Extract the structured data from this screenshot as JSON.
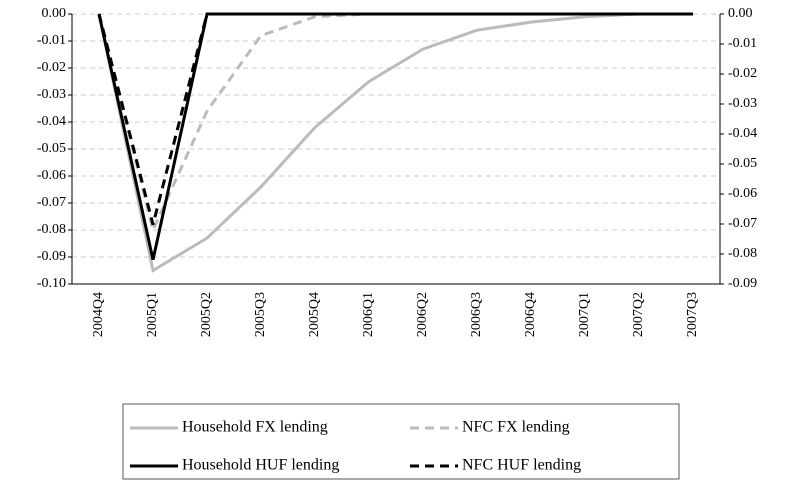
{
  "chart_data": {
    "type": "line",
    "categories": [
      "2004Q4",
      "2005Q1",
      "2005Q2",
      "2005Q3",
      "2005Q4",
      "2006Q1",
      "2006Q2",
      "2006Q3",
      "2006Q4",
      "2007Q1",
      "2007Q2",
      "2007Q3"
    ],
    "series": [
      {
        "name": "Household FX lending",
        "color": "#bbbbbb",
        "dash": "solid",
        "values": [
          0,
          -0.095,
          -0.083,
          -0.064,
          -0.042,
          -0.025,
          -0.013,
          -0.006,
          -0.003,
          -0.001,
          0,
          0
        ]
      },
      {
        "name": "NFC FX lending",
        "color": "#bbbbbb",
        "dash": "dashed",
        "values": [
          0,
          -0.08,
          -0.036,
          -0.008,
          -0.001,
          0,
          0,
          0,
          0,
          0,
          0,
          0
        ]
      },
      {
        "name": "Household HUF lending",
        "color": "#000000",
        "dash": "solid",
        "values": [
          0,
          -0.091,
          0,
          0,
          0,
          0,
          0,
          0,
          0,
          0,
          0,
          0
        ]
      },
      {
        "name": "NFC HUF lending",
        "color": "#000000",
        "dash": "dashed",
        "values": [
          0,
          -0.078,
          0,
          0,
          0,
          0,
          0,
          0,
          0,
          0,
          0,
          0
        ]
      }
    ],
    "ylim": [
      -0.1,
      0
    ],
    "yticks": [
      {
        "value": 0,
        "label": "0.00"
      },
      {
        "value": -0.01,
        "label": "-0.01"
      },
      {
        "value": -0.02,
        "label": "-0.02"
      },
      {
        "value": -0.03,
        "label": "-0.03"
      },
      {
        "value": -0.04,
        "label": "-0.04"
      },
      {
        "value": -0.05,
        "label": "-0.05"
      },
      {
        "value": -0.06,
        "label": "-0.06"
      },
      {
        "value": -0.07,
        "label": "-0.07"
      },
      {
        "value": -0.08,
        "label": "-0.08"
      },
      {
        "value": -0.09,
        "label": "-0.09"
      },
      {
        "value": -0.1,
        "label": "-0.10"
      }
    ],
    "y2lim": [
      -0.09,
      0
    ],
    "y2ticks": [
      {
        "value": 0,
        "label": "0.00"
      },
      {
        "value": -0.01,
        "label": "-0.01"
      },
      {
        "value": -0.02,
        "label": "-0.02"
      },
      {
        "value": -0.03,
        "label": "-0.03"
      },
      {
        "value": -0.04,
        "label": "-0.04"
      },
      {
        "value": -0.05,
        "label": "-0.05"
      },
      {
        "value": -0.06,
        "label": "-0.06"
      },
      {
        "value": -0.07,
        "label": "-0.07"
      },
      {
        "value": -0.08,
        "label": "-0.08"
      },
      {
        "value": -0.09,
        "label": "-0.09"
      }
    ],
    "grid": true,
    "legend": "bottom"
  }
}
